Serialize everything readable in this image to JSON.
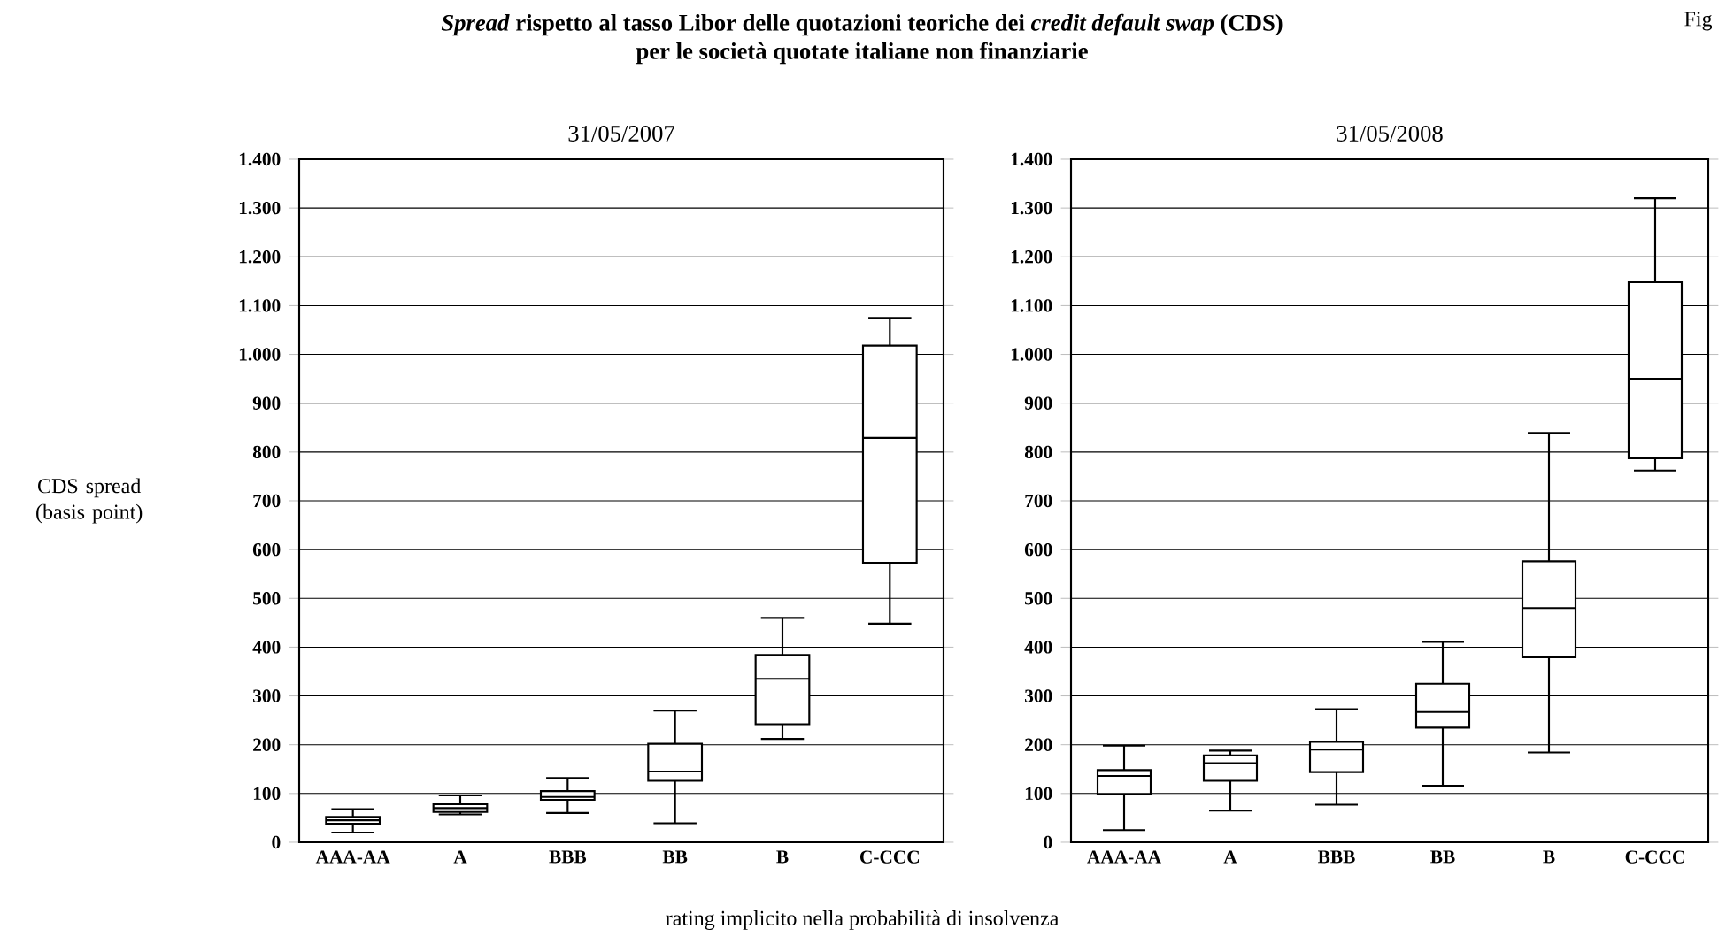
{
  "chart_data": [
    {
      "type": "other",
      "title": "*Spread* rispetto al tasso Libor delle quotazioni teoriche dei *credit default swap* (CDS)",
      "subtitle": "per le società quotate italiane non finanziarie",
      "annotations": [
        "Fig",
        "rating implicito nella probabilità di insolvenza"
      ]
    },
    {
      "type": "box",
      "title": "31/05/2007",
      "ylabel": "CDS spread (basis point)",
      "categories": [
        "AAA-AA",
        "A",
        "BBB",
        "BB",
        "B",
        "C-CCC"
      ],
      "boxes": [
        {
          "low": 20,
          "q1": 38,
          "median": 45,
          "q3": 52,
          "high": 68
        },
        {
          "low": 57,
          "q1": 62,
          "median": 70,
          "q3": 78,
          "high": 96
        },
        {
          "low": 60,
          "q1": 87,
          "median": 93,
          "q3": 105,
          "high": 132
        },
        {
          "low": 39,
          "q1": 126,
          "median": 145,
          "q3": 202,
          "high": 270
        },
        {
          "low": 212,
          "q1": 242,
          "median": 335,
          "q3": 384,
          "high": 460
        },
        {
          "low": 448,
          "q1": 573,
          "median": 829,
          "q3": 1018,
          "high": 1075
        }
      ],
      "ylim": [
        0,
        1400
      ],
      "yticks": [
        0,
        100,
        200,
        300,
        400,
        500,
        600,
        700,
        800,
        900,
        {
          "value": 1000,
          "label": "1.000"
        },
        {
          "value": 1100,
          "label": "1.100"
        },
        {
          "value": 1200,
          "label": "1.200"
        },
        {
          "value": 1300,
          "label": "1.300"
        },
        {
          "value": 1400,
          "label": "1.400"
        }
      ],
      "grid": "y"
    },
    {
      "type": "box",
      "title": "31/05/2008",
      "categories": [
        "AAA-AA",
        "A",
        "BBB",
        "BB",
        "B",
        "C-CCC"
      ],
      "boxes": [
        {
          "low": 25,
          "q1": 99,
          "median": 136,
          "q3": 148,
          "high": 198
        },
        {
          "low": 65,
          "q1": 126,
          "median": 162,
          "q3": 178,
          "high": 188
        },
        {
          "low": 77,
          "q1": 144,
          "median": 190,
          "q3": 206,
          "high": 273
        },
        {
          "low": 116,
          "q1": 235,
          "median": 267,
          "q3": 325,
          "high": 411
        },
        {
          "low": 184,
          "q1": 379,
          "median": 480,
          "q3": 576,
          "high": 839
        },
        {
          "low": 762,
          "q1": 787,
          "median": 950,
          "q3": 1148,
          "high": 1320
        }
      ],
      "ylim": [
        0,
        1400
      ],
      "yticks": [
        0,
        100,
        200,
        300,
        400,
        500,
        600,
        700,
        800,
        900,
        {
          "value": 1000,
          "label": "1.000"
        },
        {
          "value": 1100,
          "label": "1.100"
        },
        {
          "value": 1200,
          "label": "1.200"
        },
        {
          "value": 1300,
          "label": "1.300"
        },
        {
          "value": 1400,
          "label": "1.400"
        }
      ],
      "grid": "y"
    }
  ]
}
